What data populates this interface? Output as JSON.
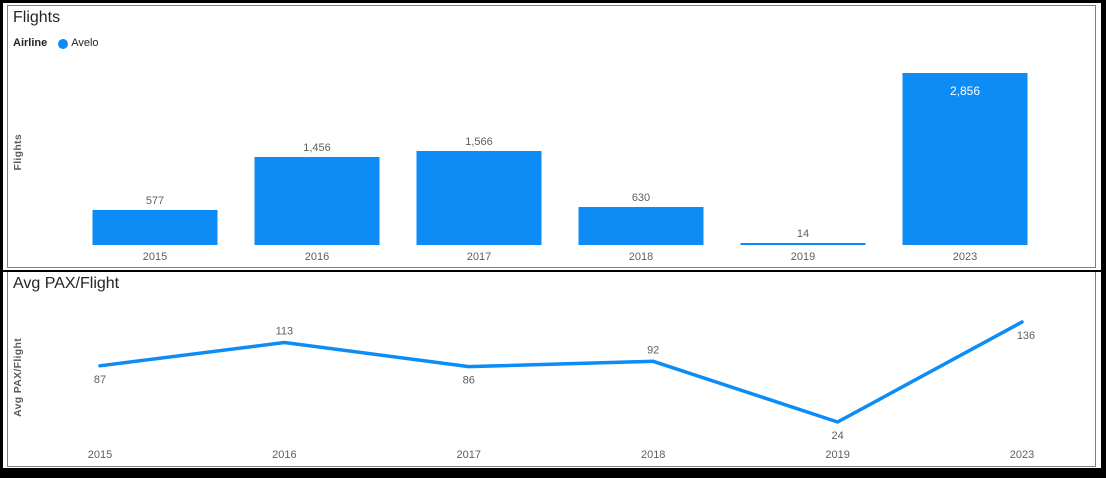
{
  "report": {
    "panels": [
      {
        "title": "Flights",
        "y_axis_title": "Flights",
        "legend": {
          "field_label": "Airline",
          "series": [
            {
              "label": "Avelo",
              "color": "#0C8CF4"
            }
          ]
        }
      },
      {
        "title": "Avg PAX/Flight",
        "y_axis_title": "Avg PAX/Flight"
      }
    ]
  },
  "colors": {
    "accent_blue": "#0C8CF4",
    "label_gray": "#605E5C",
    "title_dark": "#252423",
    "panel_border": "#808080",
    "frame_black": "#000000",
    "inside_label_white": "#FFFFFF"
  },
  "chart_data": [
    {
      "type": "bar",
      "title": "Flights",
      "series_name": "Avelo",
      "categories": [
        "2015",
        "2016",
        "2017",
        "2018",
        "2019",
        "2023"
      ],
      "values": [
        577,
        1456,
        1566,
        630,
        14,
        2856
      ],
      "value_labels": [
        "577",
        "1,456",
        "1,566",
        "630",
        "14",
        "2,856"
      ],
      "xlabel": "",
      "ylabel": "Flights",
      "ylim": [
        0,
        2856
      ],
      "grid": false,
      "legend_position": "top-left",
      "bar_color": "#0C8CF4",
      "value_label_placement": [
        "above",
        "above",
        "above",
        "above",
        "above",
        "inside"
      ]
    },
    {
      "type": "line",
      "title": "Avg PAX/Flight",
      "series_name": "Avelo",
      "categories": [
        "2015",
        "2016",
        "2017",
        "2018",
        "2019",
        "2023"
      ],
      "values": [
        87,
        113,
        86,
        92,
        24,
        136
      ],
      "value_labels": [
        "87",
        "113",
        "86",
        "92",
        "24",
        "136"
      ],
      "xlabel": "",
      "ylabel": "Avg PAX/Flight",
      "ylim": [
        0,
        150
      ],
      "grid": false,
      "line_color": "#0C8CF4",
      "value_label_placement": [
        "below",
        "above",
        "below",
        "above",
        "below",
        "below"
      ]
    }
  ]
}
